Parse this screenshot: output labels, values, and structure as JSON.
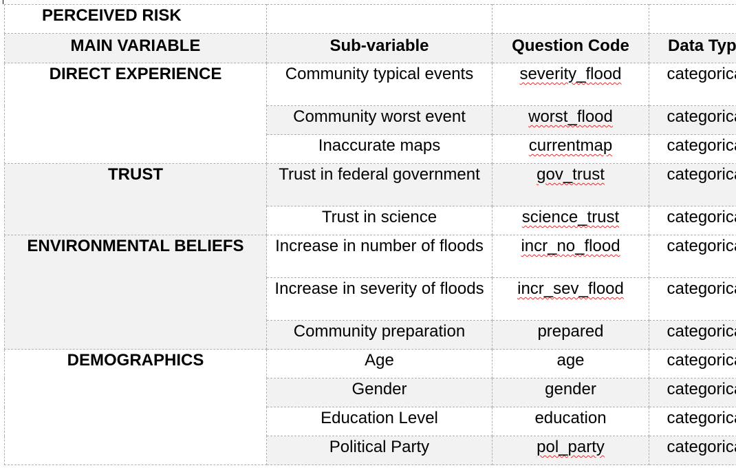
{
  "table": {
    "title": "PERCEIVED RISK",
    "headers": {
      "main": "MAIN VARIABLE",
      "sub": "Sub-variable",
      "code": "Question Code",
      "type": "Data Type"
    },
    "groups": [
      {
        "main": "DIRECT EXPERIENCE",
        "rows": [
          {
            "sub": "Community typical events",
            "code": "severity_flood",
            "type": "categorical"
          },
          {
            "sub": "Community worst event",
            "code": "worst_flood",
            "type": "categorical"
          },
          {
            "sub": "Inaccurate maps",
            "code": "currentmap",
            "type": "categorical"
          }
        ]
      },
      {
        "main": "TRUST",
        "rows": [
          {
            "sub": "Trust in federal government",
            "code": "gov_trust",
            "type": "categorical"
          },
          {
            "sub": "Trust in science",
            "code": "science_trust",
            "type": "categorical"
          }
        ]
      },
      {
        "main": "ENVIRONMENTAL BELIEFS",
        "rows": [
          {
            "sub": "Increase in number of floods",
            "code": "incr_no_flood",
            "type": "categorical"
          },
          {
            "sub": "Increase in severity of floods",
            "code": "incr_sev_flood",
            "type": "categorical"
          },
          {
            "sub": "Community preparation",
            "code": "prepared",
            "type": "categorical"
          }
        ]
      },
      {
        "main": "DEMOGRAPHICS",
        "rows": [
          {
            "sub": "Age",
            "code": "age",
            "type": "categorical"
          },
          {
            "sub": "Gender",
            "code": "gender",
            "type": "categorical"
          },
          {
            "sub": "Education Level",
            "code": "education",
            "type": "categorical"
          },
          {
            "sub": "Political Party",
            "code": "pol_party",
            "type": "categorical"
          }
        ]
      }
    ]
  }
}
